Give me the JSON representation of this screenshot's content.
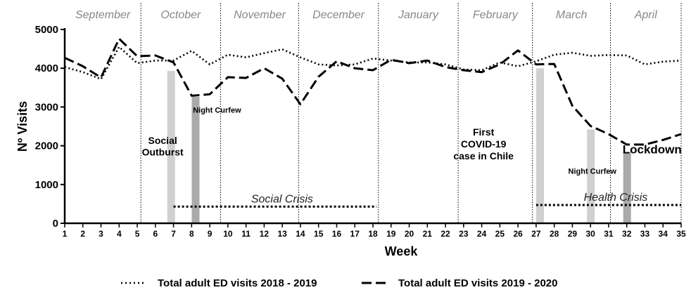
{
  "chart_data": {
    "type": "line",
    "xlabel": "Week",
    "ylabel": "Nº Visits",
    "ylim": [
      0,
      5000
    ],
    "xlim": [
      1,
      35
    ],
    "yticks": [
      0,
      1000,
      2000,
      3000,
      4000,
      5000
    ],
    "x": [
      1,
      2,
      3,
      4,
      5,
      6,
      7,
      8,
      9,
      10,
      11,
      12,
      13,
      14,
      15,
      16,
      17,
      18,
      19,
      20,
      21,
      22,
      23,
      24,
      25,
      26,
      27,
      28,
      29,
      30,
      31,
      32,
      33,
      34,
      35
    ],
    "months": [
      {
        "label": "September",
        "start": 1,
        "end": 5.2
      },
      {
        "label": "October",
        "start": 5.2,
        "end": 9.6
      },
      {
        "label": "November",
        "start": 9.6,
        "end": 13.9
      },
      {
        "label": "December",
        "start": 13.9,
        "end": 18.3
      },
      {
        "label": "January",
        "start": 18.3,
        "end": 22.7
      },
      {
        "label": "February",
        "start": 22.7,
        "end": 26.8
      },
      {
        "label": "March",
        "start": 26.8,
        "end": 31.1
      },
      {
        "label": "April",
        "start": 31.1,
        "end": 35
      }
    ],
    "series": [
      {
        "name": "Total adult ED visits 2018 - 2019",
        "style": "dotted",
        "values": [
          4030,
          3900,
          3720,
          4550,
          4130,
          4200,
          4200,
          4450,
          4100,
          4350,
          4280,
          4390,
          4490,
          4280,
          4100,
          4070,
          4100,
          4250,
          4200,
          4150,
          4150,
          4100,
          3970,
          3950,
          4150,
          4050,
          4180,
          4350,
          4400,
          4320,
          4340,
          4330,
          4100,
          4170,
          4200
        ]
      },
      {
        "name": "Total adult ED visits 2019 - 2020",
        "style": "dashed",
        "values": [
          4270,
          4050,
          3760,
          4760,
          4310,
          4330,
          4150,
          3290,
          3330,
          3770,
          3750,
          4000,
          3730,
          3070,
          3780,
          4180,
          4000,
          3950,
          4220,
          4130,
          4200,
          4030,
          3950,
          3900,
          4100,
          4460,
          4100,
          4110,
          3030,
          2510,
          2300,
          2030,
          2030,
          2150,
          2300
        ]
      }
    ],
    "bars": [
      {
        "x": 6.85,
        "value": 3930,
        "color": "#d0d0d0"
      },
      {
        "x": 8.2,
        "value": 3260,
        "color": "#aaaaaa"
      },
      {
        "x": 27.2,
        "value": 4000,
        "color": "#d0d0d0"
      },
      {
        "x": 30,
        "value": 2420,
        "color": "#d0d0d0"
      },
      {
        "x": 32,
        "value": 1840,
        "color": "#aaaaaa"
      }
    ],
    "periods": [
      {
        "label": "Social Crisis",
        "start": 7,
        "end": 18.2,
        "y": 430
      },
      {
        "label": "Health Crisis",
        "start": 27,
        "end": 35,
        "y": 470
      }
    ],
    "annotations": [
      {
        "lines": [
          "Social",
          "Outburst"
        ],
        "x": 6.4,
        "y": 2050,
        "size": 14
      },
      {
        "lines": [
          "Night Curfew"
        ],
        "x": 9.4,
        "y": 2850,
        "size": 11
      },
      {
        "lines": [
          "First",
          "COVID-19",
          "case in Chile"
        ],
        "x": 24.1,
        "y": 2260,
        "size": 14
      },
      {
        "lines": [
          "Night Curfew"
        ],
        "x": 30.1,
        "y": 1280,
        "size": 11
      },
      {
        "lines": [
          "Lockdown"
        ],
        "x": 33.4,
        "y": 1800,
        "size": 17
      }
    ],
    "legend_placement": "bottom",
    "colors": {
      "line": "#000000",
      "month_label": "#888888"
    }
  }
}
